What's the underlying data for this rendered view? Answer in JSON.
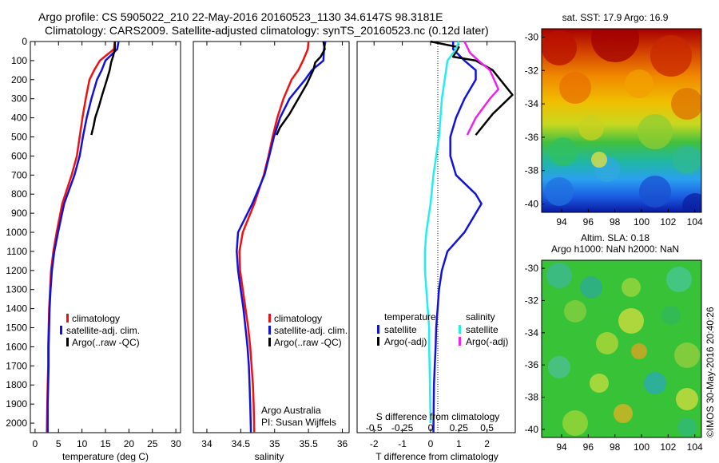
{
  "title": {
    "line1": "Argo profile: CS 5905022_210 22-May-2016 20160523_1130 34.6147S 98.3181E",
    "line2": "Climatology: CARS2009. Satellite-adjusted climatology: synTS_20160523.nc (0.12d later)"
  },
  "credit": {
    "line1": "Argo Australia",
    "line2": "PI: Susan Wijffels"
  },
  "footer_stamp": "©IMOS 30-May-2016 20:40:26",
  "colors": {
    "climatology": "#ee1111",
    "satellite": "#1111dd",
    "argo": "#000000",
    "satellite_s": "#22eeee",
    "argo_s": "#ee22ee"
  },
  "chart_data": [
    {
      "type": "line",
      "id": "temperature",
      "xlabel": "temperature (deg C)",
      "ylabel": "",
      "xlim": [
        -1,
        31
      ],
      "ylim": [
        2050,
        0
      ],
      "xticks": [
        "0",
        "5",
        "10",
        "15",
        "20",
        "25",
        "30"
      ],
      "yticks": [
        "0",
        "100",
        "200",
        "300",
        "400",
        "500",
        "600",
        "700",
        "800",
        "900",
        "1000",
        "1100",
        "1200",
        "1300",
        "1400",
        "1500",
        "1600",
        "1700",
        "1800",
        "1900",
        "2000"
      ],
      "legend": [
        "climatology",
        "satellite-adj. clim.",
        "Argo(..raw -QC)"
      ],
      "series": [
        {
          "name": "climatology",
          "x": [
            17.0,
            16.8,
            13.8,
            12.6,
            11.6,
            10.8,
            10.1,
            9.5,
            8.9,
            7.8,
            5.8,
            4.6,
            3.9,
            3.4,
            3.2,
            3.0,
            2.9,
            2.8,
            2.8,
            2.7,
            2.6,
            2.5
          ],
          "y": [
            0,
            40,
            100,
            150,
            200,
            300,
            400,
            500,
            600,
            700,
            850,
            1000,
            1100,
            1200,
            1300,
            1400,
            1500,
            1600,
            1700,
            1800,
            1900,
            2050
          ]
        },
        {
          "name": "satellite-adj. clim.",
          "x": [
            17.8,
            17.5,
            15.0,
            14.2,
            13.2,
            12.0,
            11.0,
            10.2,
            9.5,
            8.4,
            6.2,
            4.9,
            4.1,
            3.6,
            3.3,
            3.1,
            3.0,
            2.9,
            2.9,
            2.8,
            2.7,
            2.7
          ],
          "y": [
            0,
            40,
            100,
            150,
            200,
            300,
            400,
            500,
            600,
            700,
            850,
            1000,
            1100,
            1200,
            1300,
            1400,
            1500,
            1600,
            1700,
            1800,
            1900,
            2050
          ]
        },
        {
          "name": "Argo(..raw -QC)",
          "x": [
            17.0,
            17.0,
            16.6,
            16.2,
            15.9,
            15.3,
            14.3,
            13.6,
            12.8,
            12.5,
            12.0
          ],
          "y": [
            0,
            40,
            80,
            110,
            150,
            200,
            280,
            340,
            400,
            440,
            490
          ]
        }
      ]
    },
    {
      "type": "line",
      "id": "salinity",
      "xlabel": "salinity",
      "ylabel": "",
      "xlim": [
        33.8,
        36.1
      ],
      "ylim": [
        2050,
        0
      ],
      "xticks": [
        "34",
        "34.5",
        "35",
        "35.5",
        "36"
      ],
      "legend": [
        "climatology",
        "satellite-adj. clim.",
        "Argo(..raw -QC)"
      ],
      "series": [
        {
          "name": "climatology",
          "x": [
            35.5,
            35.49,
            35.42,
            35.35,
            35.25,
            35.13,
            35.04,
            34.97,
            34.91,
            34.84,
            34.7,
            34.53,
            34.48,
            34.49,
            34.53,
            34.57,
            34.61,
            34.64,
            34.66,
            34.68,
            34.69,
            34.7
          ],
          "y": [
            0,
            40,
            100,
            150,
            200,
            300,
            400,
            500,
            600,
            700,
            850,
            1000,
            1100,
            1200,
            1300,
            1400,
            1500,
            1600,
            1700,
            1800,
            1900,
            2050
          ]
        },
        {
          "name": "satellite-adj. clim.",
          "x": [
            35.75,
            35.73,
            35.72,
            35.55,
            35.45,
            35.22,
            35.08,
            34.99,
            34.92,
            34.85,
            34.67,
            34.46,
            34.44,
            34.46,
            34.5,
            34.54,
            34.57,
            34.6,
            34.62,
            34.63,
            34.64,
            34.65
          ],
          "y": [
            0,
            40,
            100,
            150,
            200,
            300,
            400,
            500,
            600,
            700,
            850,
            1000,
            1100,
            1200,
            1300,
            1400,
            1500,
            1600,
            1700,
            1800,
            1900,
            2050
          ]
        },
        {
          "name": "Argo(..raw -QC)",
          "x": [
            35.72,
            35.74,
            35.68,
            35.6,
            35.57,
            35.48,
            35.35,
            35.22,
            35.08,
            35.03
          ],
          "y": [
            0,
            40,
            80,
            110,
            150,
            220,
            300,
            380,
            450,
            490
          ]
        }
      ]
    },
    {
      "type": "line",
      "id": "difference",
      "xlabel": "T difference from climatology",
      "xlabel_top": "S difference from climatology",
      "xlim": [
        -2.6,
        3.0
      ],
      "ylim": [
        2050,
        0
      ],
      "xticks": [
        "-2",
        "-1",
        "0",
        "1",
        "2"
      ],
      "xticks_top": [
        "-0.5",
        "-0.25",
        "0",
        "0.25",
        "0.5"
      ],
      "legend_headers": [
        "temperature",
        "salinity"
      ],
      "legend": [
        "satellite",
        "Argo(-adj)",
        "satellite",
        "Argo(-adj)"
      ],
      "series": [
        {
          "name": "temperature satellite",
          "x": [
            0.8,
            0.8,
            1.2,
            1.6,
            1.6,
            1.2,
            0.9,
            0.7,
            0.7,
            0.9,
            1.6,
            1.8,
            1.2,
            0.6,
            0.4,
            0.3,
            0.25,
            0.2,
            0.18,
            0.15,
            0.12,
            0.1
          ],
          "y": [
            0,
            40,
            100,
            150,
            200,
            300,
            400,
            500,
            600,
            700,
            800,
            850,
            1000,
            1100,
            1200,
            1300,
            1400,
            1500,
            1600,
            1700,
            1800,
            2050
          ]
        },
        {
          "name": "Argo(-adj) temperature",
          "x": [
            0.0,
            1.0,
            0.8,
            1.6,
            2.2,
            2.9,
            2.2,
            1.6
          ],
          "y": [
            0,
            30,
            80,
            100,
            150,
            280,
            380,
            490
          ]
        },
        {
          "name": "salinity satellite",
          "x": [
            1.0,
            0.9,
            0.6,
            0.55,
            0.5,
            0.4,
            0.35,
            0.3,
            0.2,
            0.1,
            0.0,
            -0.15,
            -0.2,
            -0.2,
            -0.15,
            -0.1,
            -0.05,
            -0.05,
            -0.02,
            0.0
          ],
          "y": [
            0,
            40,
            100,
            150,
            200,
            300,
            400,
            500,
            600,
            700,
            850,
            1000,
            1100,
            1200,
            1300,
            1400,
            1500,
            1600,
            1800,
            2000
          ]
        },
        {
          "name": "Argo(-adj) salinity",
          "x": [
            1.2,
            1.4,
            1.7,
            2.1,
            2.4,
            2.1,
            1.6,
            1.3
          ],
          "y": [
            0,
            60,
            100,
            150,
            250,
            300,
            400,
            490
          ]
        }
      ]
    },
    {
      "type": "heatmap",
      "id": "sst_map",
      "title": "sat. SST: 17.9  Argo: 16.9",
      "xlim": [
        92.5,
        104.5
      ],
      "ylim": [
        -40.5,
        -29.5
      ],
      "xticks": [
        "94",
        "96",
        "98",
        "100",
        "102",
        "104"
      ],
      "yticks": [
        "-30",
        "-32",
        "-34",
        "-36",
        "-38",
        "-40"
      ]
    },
    {
      "type": "heatmap",
      "id": "sla_map",
      "title_line1": "Altim. SLA: 0.18",
      "title_line2": "Argo h1000: NaN h2000: NaN",
      "xlim": [
        92.5,
        104.5
      ],
      "ylim": [
        -40.5,
        -29.5
      ],
      "xticks": [
        "94",
        "96",
        "98",
        "100",
        "102",
        "104"
      ],
      "yticks": [
        "-30",
        "-32",
        "-34",
        "-36",
        "-38",
        "-40"
      ]
    }
  ]
}
